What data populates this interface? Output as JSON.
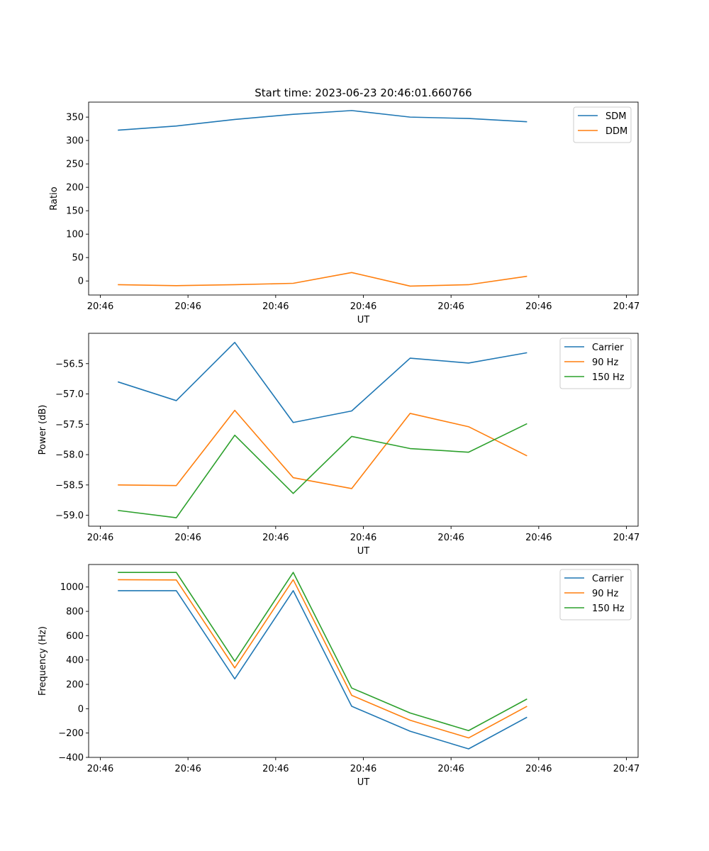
{
  "chart_data": [
    {
      "type": "line",
      "title": "Start time: 2023-06-23 20:46:01.660766",
      "xlabel": "UT",
      "ylabel": "Ratio",
      "x": [
        1,
        2,
        3,
        4,
        5,
        6,
        7,
        8
      ],
      "xlim": [
        0.5,
        9.9
      ],
      "xticks": [
        0.7,
        2.2,
        3.7,
        5.2,
        6.7,
        8.2,
        9.7
      ],
      "xtick_labels": [
        "20:46",
        "20:46",
        "20:46",
        "20:46",
        "20:46",
        "20:46",
        "20:47"
      ],
      "ylim": [
        -30,
        382
      ],
      "yticks": [
        0,
        50,
        100,
        150,
        200,
        250,
        300,
        350
      ],
      "ytick_labels": [
        "0",
        "50",
        "100",
        "150",
        "200",
        "250",
        "300",
        "350"
      ],
      "legend": "top-right",
      "series": [
        {
          "name": "SDM",
          "color": "#1f77b4",
          "values": [
            322,
            331,
            345,
            356,
            364,
            350,
            347,
            340
          ]
        },
        {
          "name": "DDM",
          "color": "#ff7f0e",
          "values": [
            -8,
            -10,
            -8,
            -5,
            18,
            -11,
            -8,
            10
          ]
        }
      ]
    },
    {
      "type": "line",
      "title": "",
      "xlabel": "UT",
      "ylabel": "Power (dB)",
      "x": [
        1,
        2,
        3,
        4,
        5,
        6,
        7,
        8
      ],
      "xlim": [
        0.5,
        9.9
      ],
      "xticks": [
        0.7,
        2.2,
        3.7,
        5.2,
        6.7,
        8.2,
        9.7
      ],
      "xtick_labels": [
        "20:46",
        "20:46",
        "20:46",
        "20:46",
        "20:46",
        "20:46",
        "20:47"
      ],
      "ylim": [
        -59.18,
        -56.0
      ],
      "yticks": [
        -59.0,
        -58.5,
        -58.0,
        -57.5,
        -57.0,
        -56.5
      ],
      "ytick_labels": [
        "−59.0",
        "−58.5",
        "−58.0",
        "−57.5",
        "−57.0",
        "−56.5"
      ],
      "legend": "top-right",
      "series": [
        {
          "name": "Carrier",
          "color": "#1f77b4",
          "values": [
            -56.8,
            -57.11,
            -56.15,
            -57.47,
            -57.28,
            -56.41,
            -56.49,
            -56.32
          ]
        },
        {
          "name": "90 Hz",
          "color": "#ff7f0e",
          "values": [
            -58.5,
            -58.51,
            -57.27,
            -58.38,
            -58.56,
            -57.32,
            -57.54,
            -58.02
          ]
        },
        {
          "name": "150 Hz",
          "color": "#2ca02c",
          "values": [
            -58.92,
            -59.04,
            -57.68,
            -58.64,
            -57.7,
            -57.9,
            -57.96,
            -57.49
          ]
        }
      ]
    },
    {
      "type": "line",
      "title": "",
      "xlabel": "UT",
      "ylabel": "Frequency (Hz)",
      "x": [
        1,
        2,
        3,
        4,
        5,
        6,
        7,
        8
      ],
      "xlim": [
        0.5,
        9.9
      ],
      "xticks": [
        0.7,
        2.2,
        3.7,
        5.2,
        6.7,
        8.2,
        9.7
      ],
      "xtick_labels": [
        "20:46",
        "20:46",
        "20:46",
        "20:46",
        "20:46",
        "20:46",
        "20:47"
      ],
      "ylim": [
        -400,
        1185
      ],
      "yticks": [
        -400,
        -200,
        0,
        200,
        400,
        600,
        800,
        1000
      ],
      "ytick_labels": [
        "−400",
        "−200",
        "0",
        "200",
        "400",
        "600",
        "800",
        "1000"
      ],
      "legend": "top-right",
      "series": [
        {
          "name": "Carrier",
          "color": "#1f77b4",
          "values": [
            970,
            970,
            245,
            970,
            20,
            -185,
            -330,
            -70
          ]
        },
        {
          "name": "90 Hz",
          "color": "#ff7f0e",
          "values": [
            1060,
            1058,
            335,
            1060,
            110,
            -95,
            -240,
            20
          ]
        },
        {
          "name": "150 Hz",
          "color": "#2ca02c",
          "values": [
            1120,
            1120,
            390,
            1120,
            170,
            -35,
            -180,
            80
          ]
        }
      ]
    }
  ]
}
